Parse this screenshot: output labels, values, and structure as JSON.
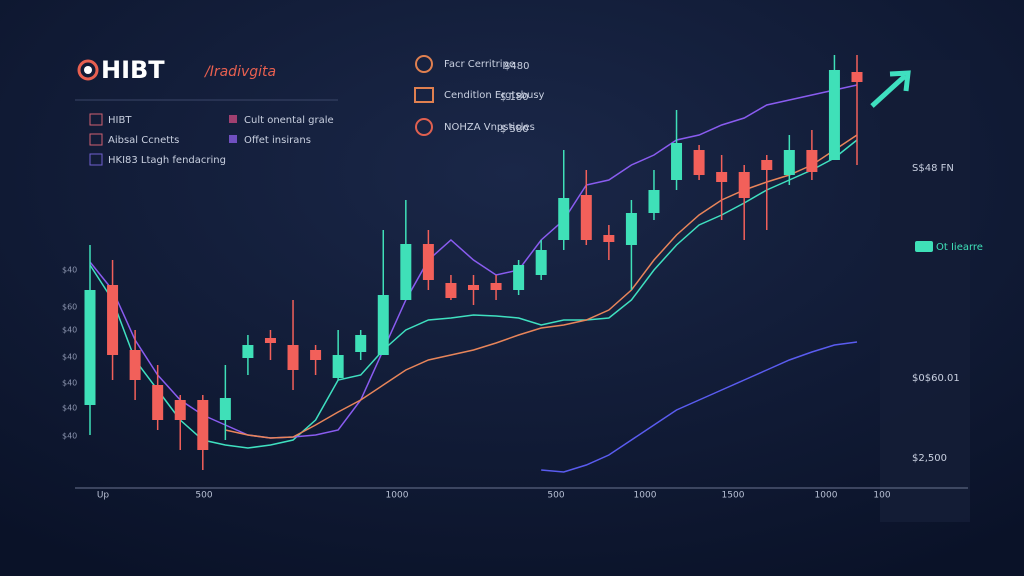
{
  "header": {
    "logo": "HIBT",
    "subtitle": "/Iradivgita"
  },
  "menu": [
    "HIBT",
    "Aibsal Ccnetts",
    "HKI83 Ltagh fendacring",
    "Cult onental grale",
    "Offet insirans"
  ],
  "info": [
    {
      "label": "Facr Cerritripe",
      "value": "$480"
    },
    {
      "label": "Cenditlon Ergtsbusy",
      "value": "$ 180"
    },
    {
      "label": "NOHZA Vnpsticles",
      "value": "$ 580"
    }
  ],
  "side_panel": {
    "price": "S$48 FN",
    "badge": "Ot Iiearre",
    "stat": "$0$60.01",
    "volume": "$2,500"
  },
  "y_labels": [
    "$40",
    "$60",
    "$40",
    "$40",
    "$40",
    "$40",
    "$40"
  ],
  "chart_data": {
    "type": "candlestick",
    "x_labels": [
      "Up",
      "500",
      "1000",
      "500",
      "1000",
      "1500",
      "1000",
      "100"
    ],
    "categories": [
      null,
      null,
      null,
      null,
      null,
      null,
      null,
      null,
      null,
      null,
      null,
      null,
      null,
      null,
      null,
      null,
      null,
      null,
      null,
      null,
      null,
      null,
      null,
      null,
      null,
      null,
      null,
      null,
      null,
      null,
      null,
      null,
      null,
      null,
      null
    ],
    "open": [
      95,
      215,
      150,
      115,
      100,
      100,
      80,
      142,
      162,
      155,
      150,
      122,
      148,
      145,
      200,
      256,
      217,
      215,
      217,
      210,
      225,
      260,
      305,
      265,
      255,
      287,
      320,
      350,
      328,
      328,
      340,
      325,
      350,
      340,
      428
    ],
    "close": [
      210,
      145,
      120,
      80,
      80,
      50,
      102,
      155,
      157,
      130,
      140,
      145,
      165,
      205,
      256,
      220,
      202,
      210,
      210,
      235,
      250,
      302,
      260,
      258,
      287,
      310,
      357,
      325,
      318,
      302,
      330,
      350,
      328,
      430,
      418
    ],
    "high": [
      255,
      240,
      170,
      135,
      105,
      105,
      135,
      165,
      170,
      200,
      155,
      170,
      170,
      270,
      300,
      270,
      225,
      225,
      225,
      240,
      260,
      350,
      330,
      275,
      300,
      330,
      390,
      355,
      345,
      335,
      345,
      365,
      370,
      445,
      445
    ],
    "low": [
      65,
      120,
      100,
      70,
      50,
      30,
      60,
      125,
      140,
      110,
      125,
      120,
      140,
      145,
      200,
      210,
      200,
      195,
      200,
      205,
      220,
      250,
      255,
      240,
      210,
      280,
      310,
      320,
      280,
      260,
      270,
      315,
      320,
      340,
      335
    ],
    "up_color": "#3fe0b8",
    "down_color": "#f2605a",
    "series": [
      {
        "color": "#3fe0c0",
        "values": [
          235,
          200,
          140,
          110,
          80,
          60,
          55,
          52,
          55,
          60,
          80,
          120,
          125,
          150,
          170,
          180,
          182,
          185,
          184,
          182,
          175,
          180,
          180,
          182,
          200,
          230,
          255,
          275,
          285,
          297,
          310,
          320,
          330,
          342,
          360
        ]
      },
      {
        "color": "#8a5cf0",
        "values": [
          238,
          210,
          160,
          125,
          100,
          85,
          75,
          65,
          62,
          63,
          65,
          70,
          100,
          150,
          200,
          240,
          260,
          240,
          225,
          230,
          260,
          280,
          315,
          320,
          335,
          345,
          360,
          365,
          375,
          382,
          395,
          400,
          405,
          410,
          415
        ]
      },
      {
        "color": "#e8855a",
        "values": [
          null,
          null,
          null,
          null,
          null,
          null,
          70,
          65,
          62,
          63,
          75,
          88,
          100,
          115,
          130,
          140,
          145,
          150,
          157,
          165,
          172,
          175,
          180,
          190,
          210,
          240,
          265,
          285,
          300,
          310,
          318,
          325,
          335,
          350,
          365
        ]
      },
      {
        "color": "#5a5cf0",
        "values": [
          null,
          null,
          null,
          null,
          null,
          null,
          null,
          null,
          null,
          null,
          null,
          null,
          null,
          null,
          null,
          null,
          null,
          null,
          null,
          null,
          30,
          28,
          35,
          45,
          60,
          75,
          90,
          100,
          110,
          120,
          130,
          140,
          148,
          155,
          158
        ]
      }
    ],
    "ylim": [
      10,
      450
    ]
  }
}
